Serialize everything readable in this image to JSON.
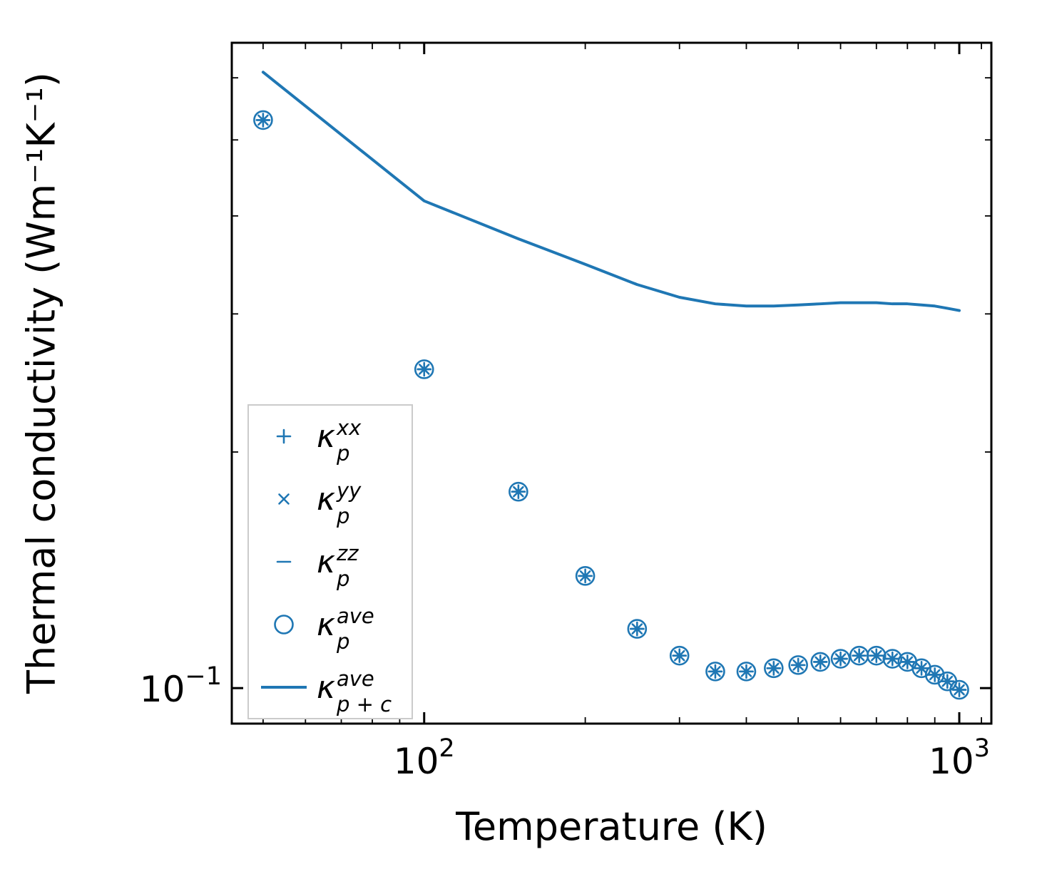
{
  "figure": {
    "background": "#ffffff"
  },
  "colors": {
    "series": "#1f77b4",
    "axis": "#000000",
    "text": "#000000",
    "legend_border": "#cbcbcb"
  },
  "chart_data": {
    "type": "line",
    "title": "",
    "xlabel": "Temperature (K)",
    "ylabel": "Thermal conductivity (Wm⁻¹K⁻¹)",
    "xscale": "log",
    "yscale": "log",
    "xlim": [
      43.7,
      1148
    ],
    "ylim": [
      0.0901,
      0.665
    ],
    "grid": false,
    "legend_position": "lower left",
    "x": [
      50,
      100,
      150,
      200,
      250,
      300,
      350,
      400,
      450,
      500,
      550,
      600,
      650,
      700,
      750,
      800,
      850,
      900,
      950,
      1000
    ],
    "x_ticks": [
      {
        "value": 100,
        "base": "10",
        "exp": "2"
      },
      {
        "value": 1000,
        "base": "10",
        "exp": "3"
      }
    ],
    "x_minor_ticks": [
      50,
      60,
      70,
      80,
      90,
      200,
      300,
      400,
      500,
      600,
      700,
      800,
      900,
      1100
    ],
    "y_ticks": [
      {
        "value": 0.1,
        "base": "10",
        "exp": "−1"
      }
    ],
    "y_minor_ticks": [
      0.2,
      0.3,
      0.4,
      0.5,
      0.6
    ],
    "series": [
      {
        "name": "kappa-p-xx",
        "marker": "plus",
        "legend_label": {
          "symbol": "κ",
          "sub": "p",
          "sup": "xx"
        },
        "values": [
          0.53,
          0.255,
          0.178,
          0.139,
          0.119,
          0.11,
          0.105,
          0.105,
          0.106,
          0.107,
          0.108,
          0.109,
          0.11,
          0.11,
          0.109,
          0.108,
          0.106,
          0.104,
          0.102,
          0.0995
        ]
      },
      {
        "name": "kappa-p-yy",
        "marker": "cross",
        "legend_label": {
          "symbol": "κ",
          "sub": "p",
          "sup": "yy"
        },
        "values": [
          0.53,
          0.255,
          0.178,
          0.139,
          0.119,
          0.11,
          0.105,
          0.105,
          0.106,
          0.107,
          0.108,
          0.109,
          0.11,
          0.11,
          0.109,
          0.108,
          0.106,
          0.104,
          0.102,
          0.0995
        ]
      },
      {
        "name": "kappa-p-zz",
        "marker": "hline",
        "legend_label": {
          "symbol": "κ",
          "sub": "p",
          "sup": "zz"
        },
        "values": [
          0.53,
          0.255,
          0.178,
          0.139,
          0.119,
          0.11,
          0.105,
          0.105,
          0.106,
          0.107,
          0.108,
          0.109,
          0.11,
          0.11,
          0.109,
          0.108,
          0.106,
          0.104,
          0.102,
          0.0995
        ]
      },
      {
        "name": "kappa-p-ave",
        "marker": "circle",
        "legend_label": {
          "symbol": "κ",
          "sub": "p",
          "sup": "ave"
        },
        "values": [
          0.53,
          0.255,
          0.178,
          0.139,
          0.119,
          0.11,
          0.105,
          0.105,
          0.106,
          0.107,
          0.108,
          0.109,
          0.11,
          0.11,
          0.109,
          0.108,
          0.106,
          0.104,
          0.102,
          0.0995
        ]
      },
      {
        "name": "kappa-p-plus-c-ave",
        "marker": "line",
        "legend_label": {
          "symbol": "κ",
          "sub": "p + c",
          "sup": "ave"
        },
        "values": [
          0.61,
          0.418,
          0.374,
          0.347,
          0.327,
          0.315,
          0.309,
          0.307,
          0.307,
          0.308,
          0.309,
          0.31,
          0.31,
          0.31,
          0.309,
          0.309,
          0.308,
          0.307,
          0.305,
          0.303
        ]
      }
    ]
  }
}
